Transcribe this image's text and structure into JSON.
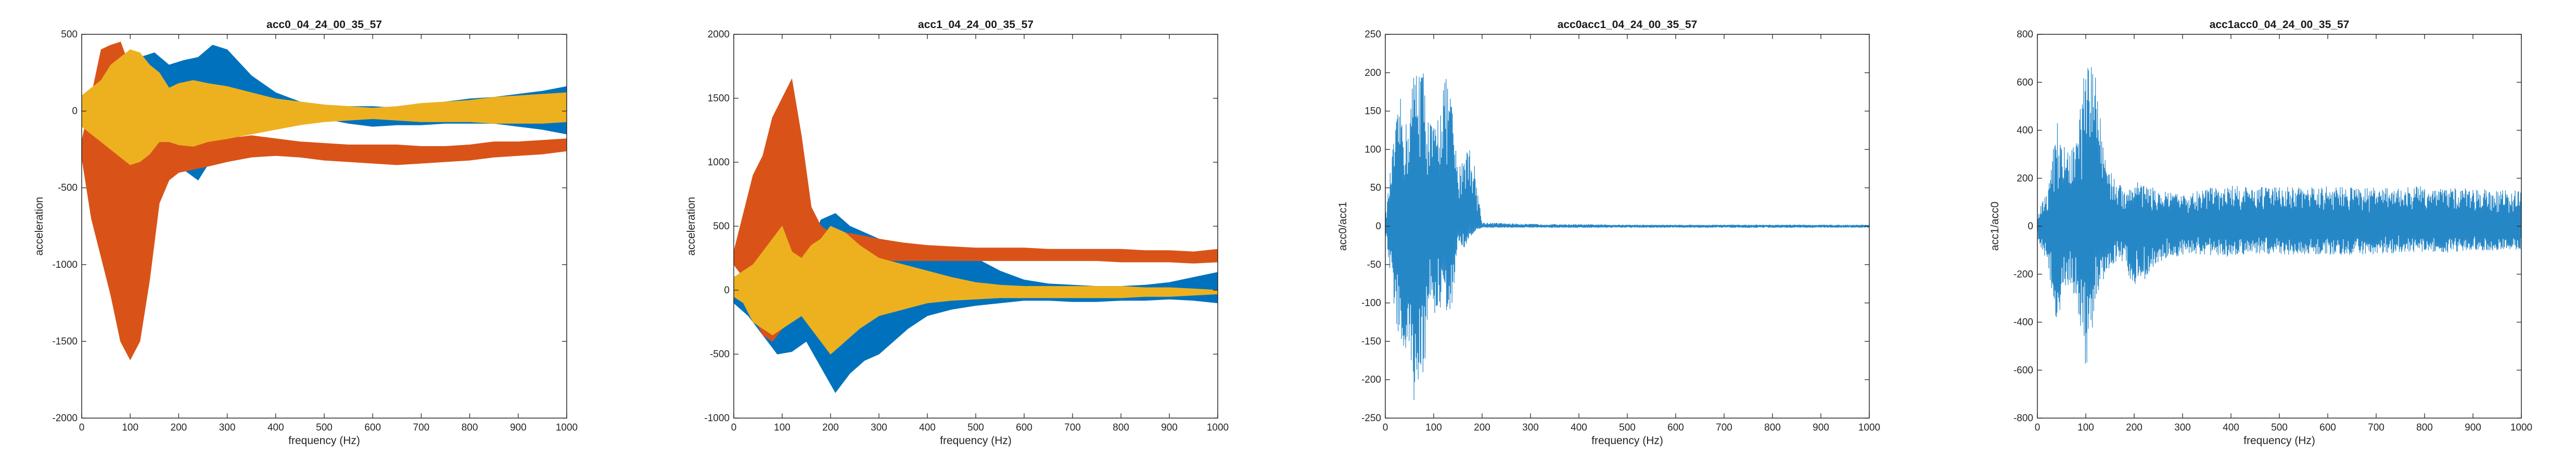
{
  "figure": {
    "colors": {
      "blue": "#0072BD",
      "orange": "#D95319",
      "yellow": "#EDB120",
      "axis": "#262626"
    }
  },
  "chart_data": [
    {
      "type": "area",
      "title": "acc0_04_24_00_35_57",
      "xlabel": "frequency (Hz)",
      "ylabel": "acceleration",
      "xlim": [
        0,
        1000
      ],
      "ylim": [
        -2000,
        500
      ],
      "xticks": [
        0,
        100,
        200,
        300,
        400,
        500,
        600,
        700,
        800,
        900,
        1000
      ],
      "yticks": [
        -2000,
        -1500,
        -1000,
        -500,
        0,
        500
      ],
      "grid": false,
      "series": [
        {
          "color": "#0072BD",
          "x": [
            0,
            30,
            60,
            90,
            120,
            150,
            180,
            210,
            240,
            270,
            300,
            350,
            400,
            450,
            500,
            550,
            600,
            650,
            700,
            750,
            800,
            850,
            900,
            950,
            1000
          ],
          "upper": [
            80,
            150,
            250,
            350,
            350,
            380,
            300,
            330,
            350,
            430,
            400,
            230,
            120,
            60,
            40,
            30,
            30,
            20,
            40,
            60,
            80,
            90,
            110,
            130,
            160
          ],
          "lower": [
            -50,
            -150,
            -200,
            -250,
            -300,
            -320,
            -280,
            -380,
            -450,
            -300,
            -200,
            -130,
            -70,
            -40,
            -50,
            -80,
            -100,
            -90,
            -90,
            -80,
            -80,
            -80,
            -100,
            -120,
            -150
          ]
        },
        {
          "color": "#D95319",
          "x": [
            0,
            20,
            40,
            60,
            80,
            100,
            120,
            140,
            160,
            180,
            200,
            230,
            260,
            300,
            350,
            400,
            450,
            500,
            550,
            600,
            650,
            700,
            750,
            800,
            850,
            900,
            950,
            1000
          ],
          "upper": [
            -200,
            100,
            400,
            430,
            450,
            280,
            200,
            -100,
            -120,
            -100,
            -150,
            -150,
            -200,
            -180,
            -160,
            -180,
            -200,
            -210,
            -220,
            -220,
            -220,
            -230,
            -230,
            -220,
            -200,
            -200,
            -190,
            -180
          ],
          "lower": [
            -300,
            -700,
            -950,
            -1200,
            -1500,
            -1620,
            -1500,
            -1100,
            -600,
            -450,
            -400,
            -380,
            -360,
            -330,
            -300,
            -290,
            -300,
            -320,
            -330,
            -340,
            -350,
            -340,
            -330,
            -320,
            -300,
            -290,
            -280,
            -260
          ]
        },
        {
          "color": "#EDB120",
          "x": [
            0,
            20,
            40,
            60,
            80,
            100,
            120,
            140,
            160,
            180,
            200,
            230,
            260,
            300,
            350,
            400,
            450,
            500,
            550,
            600,
            650,
            700,
            750,
            800,
            850,
            900,
            950,
            1000
          ],
          "upper": [
            100,
            150,
            200,
            300,
            350,
            400,
            380,
            300,
            250,
            150,
            180,
            200,
            180,
            160,
            120,
            80,
            60,
            40,
            30,
            20,
            30,
            50,
            60,
            70,
            90,
            100,
            110,
            120
          ],
          "lower": [
            -100,
            -150,
            -200,
            -250,
            -300,
            -350,
            -330,
            -280,
            -200,
            -200,
            -220,
            -230,
            -200,
            -180,
            -150,
            -120,
            -90,
            -70,
            -60,
            -50,
            -60,
            -70,
            -70,
            -70,
            -80,
            -80,
            -80,
            -70
          ]
        }
      ]
    },
    {
      "type": "area",
      "title": "acc1_04_24_00_35_57",
      "xlabel": "frequency (Hz)",
      "ylabel": "acceleration",
      "xlim": [
        0,
        1000
      ],
      "ylim": [
        -1000,
        2000
      ],
      "xticks": [
        0,
        100,
        200,
        300,
        400,
        500,
        600,
        700,
        800,
        900,
        1000
      ],
      "yticks": [
        -1000,
        -500,
        0,
        500,
        1000,
        1500,
        2000
      ],
      "grid": false,
      "series": [
        {
          "color": "#0072BD",
          "x": [
            0,
            30,
            60,
            90,
            120,
            150,
            180,
            210,
            240,
            270,
            300,
            330,
            360,
            400,
            450,
            500,
            550,
            600,
            650,
            700,
            750,
            800,
            850,
            900,
            950,
            1000
          ],
          "upper": [
            100,
            150,
            250,
            300,
            350,
            250,
            550,
            600,
            500,
            450,
            400,
            380,
            350,
            330,
            310,
            250,
            150,
            80,
            50,
            40,
            30,
            30,
            40,
            60,
            100,
            140
          ],
          "lower": [
            -100,
            -200,
            -350,
            -500,
            -480,
            -400,
            -600,
            -800,
            -650,
            -550,
            -500,
            -400,
            -300,
            -200,
            -150,
            -120,
            -100,
            -80,
            -80,
            -90,
            -90,
            -80,
            -80,
            -70,
            -80,
            -100
          ]
        },
        {
          "color": "#D95319",
          "x": [
            0,
            20,
            40,
            60,
            80,
            100,
            120,
            140,
            160,
            180,
            200,
            230,
            260,
            300,
            350,
            400,
            450,
            500,
            550,
            600,
            650,
            700,
            750,
            800,
            850,
            900,
            950,
            1000
          ],
          "upper": [
            300,
            600,
            900,
            1050,
            1350,
            1500,
            1650,
            1200,
            650,
            500,
            450,
            450,
            430,
            400,
            370,
            350,
            340,
            330,
            330,
            330,
            320,
            320,
            320,
            320,
            310,
            310,
            300,
            320
          ],
          "lower": [
            200,
            100,
            -200,
            -350,
            -400,
            -300,
            -200,
            -150,
            -100,
            50,
            150,
            200,
            220,
            230,
            230,
            230,
            230,
            230,
            230,
            230,
            230,
            230,
            230,
            220,
            220,
            220,
            210,
            220
          ]
        },
        {
          "color": "#EDB120",
          "x": [
            0,
            20,
            40,
            60,
            80,
            100,
            120,
            140,
            160,
            180,
            200,
            230,
            260,
            300,
            350,
            400,
            450,
            500,
            550,
            600,
            650,
            700,
            750,
            800,
            850,
            900,
            950,
            1000
          ],
          "upper": [
            100,
            150,
            200,
            300,
            400,
            500,
            300,
            250,
            350,
            400,
            500,
            450,
            350,
            250,
            200,
            150,
            100,
            60,
            40,
            30,
            30,
            30,
            30,
            30,
            20,
            20,
            10,
            0
          ],
          "lower": [
            -50,
            -100,
            -250,
            -300,
            -350,
            -300,
            -250,
            -200,
            -300,
            -400,
            -500,
            -400,
            -300,
            -200,
            -150,
            -100,
            -80,
            -70,
            -60,
            -60,
            -60,
            -60,
            -60,
            -60,
            -50,
            -50,
            -40,
            -30
          ]
        }
      ]
    },
    {
      "type": "line",
      "title": "acc0acc1_04_24_00_35_57",
      "xlabel": "frequency (Hz)",
      "ylabel": "acc0/acc1",
      "xlim": [
        0,
        1000
      ],
      "ylim": [
        -250,
        250
      ],
      "xticks": [
        0,
        100,
        200,
        300,
        400,
        500,
        600,
        700,
        800,
        900,
        1000
      ],
      "yticks": [
        -250,
        -200,
        -150,
        -100,
        -50,
        0,
        50,
        100,
        150,
        200,
        250
      ],
      "grid": false,
      "series": [
        {
          "color": "#0072BD",
          "x": [
            0,
            15,
            30,
            45,
            60,
            75,
            90,
            105,
            120,
            135,
            150,
            165,
            180,
            200,
            300,
            500,
            700,
            900,
            1000
          ],
          "upper": [
            10,
            100,
            170,
            130,
            210,
            225,
            140,
            130,
            200,
            180,
            70,
            110,
            100,
            5,
            3,
            2,
            2,
            2,
            2
          ],
          "lower": [
            -10,
            -90,
            -160,
            -190,
            -230,
            -240,
            -100,
            -120,
            -100,
            -130,
            -20,
            -30,
            -10,
            -2,
            -2,
            -2,
            -2,
            -2,
            -2
          ]
        }
      ]
    },
    {
      "type": "line",
      "title": "acc1acc0_04_24_00_35_57",
      "xlabel": "frequency (Hz)",
      "ylabel": "acc1/acc0",
      "xlim": [
        0,
        1000
      ],
      "ylim": [
        -800,
        800
      ],
      "xticks": [
        0,
        100,
        200,
        300,
        400,
        500,
        600,
        700,
        800,
        900,
        1000
      ],
      "yticks": [
        -800,
        -600,
        -400,
        -200,
        0,
        200,
        400,
        600,
        800
      ],
      "grid": false,
      "series": [
        {
          "color": "#0072BD",
          "x": [
            0,
            20,
            40,
            60,
            80,
            100,
            120,
            140,
            160,
            180,
            200,
            250,
            300,
            350,
            400,
            450,
            500,
            550,
            600,
            650,
            700,
            750,
            800,
            850,
            900,
            950,
            1000
          ],
          "upper": [
            50,
            150,
            450,
            300,
            350,
            700,
            650,
            300,
            200,
            150,
            200,
            150,
            130,
            160,
            170,
            160,
            170,
            160,
            170,
            165,
            160,
            160,
            170,
            160,
            160,
            150,
            150
          ],
          "lower": [
            -50,
            -150,
            -400,
            -250,
            -300,
            -600,
            -350,
            -200,
            -150,
            -150,
            -280,
            -150,
            -120,
            -120,
            -130,
            -120,
            -120,
            -120,
            -120,
            -120,
            -120,
            -110,
            -110,
            -110,
            -110,
            -100,
            -100
          ]
        }
      ]
    }
  ]
}
